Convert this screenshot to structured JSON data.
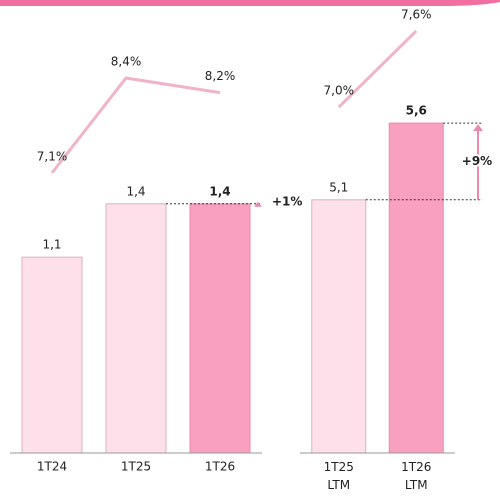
{
  "chart_data": [
    {
      "type": "bar",
      "categories": [
        "1T24",
        "1T25",
        "1T26"
      ],
      "ylim": [
        0,
        2.5
      ],
      "y2lim": [
        3.26,
        9.36
      ],
      "series": [
        {
          "type": "bar",
          "values": [
            1.1,
            1.4,
            1.4
          ],
          "value_labels": [
            "1,1",
            "1,4",
            "1,4"
          ],
          "colors": [
            "#fde0ea",
            "#fde0ea",
            "#f9a0c0"
          ]
        },
        {
          "type": "line",
          "axis": "y2",
          "color": "#f0b4c6",
          "values": [
            7.1,
            8.4,
            8.2
          ],
          "value_labels": [
            "7,1%",
            "8,4%",
            "8,2%"
          ]
        }
      ],
      "annotation": "+1%"
    },
    {
      "type": "bar",
      "categories": [
        "1T25 LTM",
        "1T26 LTM"
      ],
      "ylim": [
        3.45,
        6.35
      ],
      "y2lim": [
        4.28,
        7.78
      ],
      "series": [
        {
          "type": "bar",
          "values": [
            5.1,
            5.6
          ],
          "value_labels": [
            "5,1",
            "5,6"
          ],
          "colors": [
            "#fde0ea",
            "#f9a0c0"
          ]
        },
        {
          "type": "line",
          "axis": "y2",
          "color": "#f0b4c6",
          "values": [
            7.0,
            7.6
          ],
          "value_labels": [
            "7,0%",
            "7,6%"
          ]
        }
      ],
      "annotation": "+9%"
    }
  ]
}
